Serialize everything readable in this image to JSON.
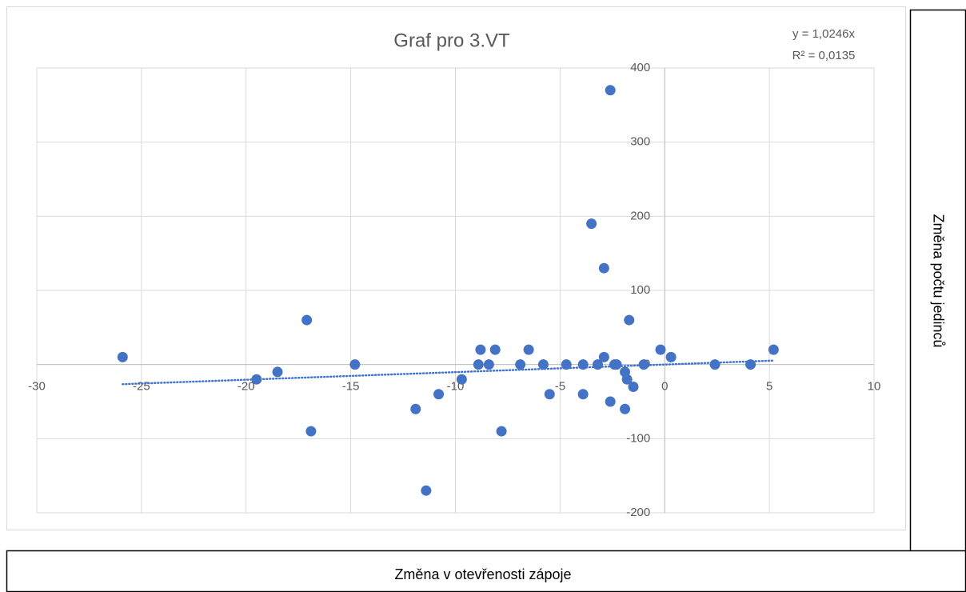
{
  "chart_data": {
    "type": "scatter",
    "title": "Graf pro 3.VT",
    "x_label": "Změna v otevřenosti zápoje",
    "y_label": "Změna počtu jedinců",
    "trendline": {
      "slope": 1.0246,
      "equation": "y = 1,0246x",
      "r_squared": "R² = 0,0135"
    },
    "color": "#4472c4",
    "grid": true,
    "xlim": [
      -30,
      10
    ],
    "xticks": [
      -30,
      -25,
      -20,
      -15,
      -10,
      -5,
      0,
      5,
      10
    ],
    "ylim": [
      -200,
      400
    ],
    "yticks": [
      -200,
      -100,
      0,
      100,
      200,
      300,
      400
    ],
    "x": [
      -25.9,
      -19.5,
      -18.5,
      -17.1,
      -16.9,
      -14.8,
      -11.9,
      -11.4,
      -10.8,
      -9.7,
      -8.9,
      -8.8,
      -8.4,
      -8.1,
      -7.8,
      -6.9,
      -6.5,
      -5.8,
      -5.5,
      -4.7,
      -3.9,
      -3.9,
      -3.5,
      -3.2,
      -2.9,
      -2.9,
      -2.6,
      -2.6,
      -2.4,
      -2.3,
      -1.9,
      -1.9,
      -1.8,
      -1.7,
      -1.5,
      -1.0,
      -0.2,
      0.3,
      2.4,
      4.1,
      5.2
    ],
    "y": [
      10,
      -20,
      -10,
      60,
      -90,
      0,
      -60,
      -170,
      -40,
      -20,
      0,
      20,
      0,
      20,
      -90,
      0,
      20,
      0,
      -40,
      0,
      0,
      -40,
      190,
      0,
      10,
      130,
      -50,
      370,
      0,
      0,
      -10,
      -60,
      -20,
      60,
      -30,
      0,
      20,
      10,
      0,
      0,
      20
    ]
  }
}
